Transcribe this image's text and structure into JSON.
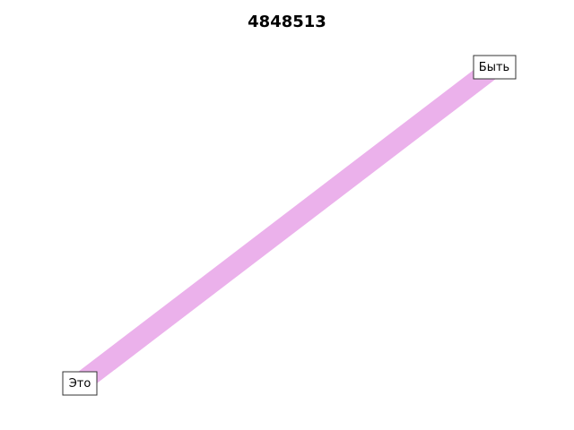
{
  "title": "4848513",
  "colors": {
    "edge": "#ebb1eb",
    "node_border": "#333333",
    "node_fill": "#ffffff",
    "text": "#000000",
    "background": "#ffffff"
  },
  "nodes": [
    {
      "id": "n0",
      "label": "Это"
    },
    {
      "id": "n1",
      "label": "Быть"
    }
  ],
  "edges": [
    {
      "from": "n0",
      "to": "n1"
    }
  ]
}
